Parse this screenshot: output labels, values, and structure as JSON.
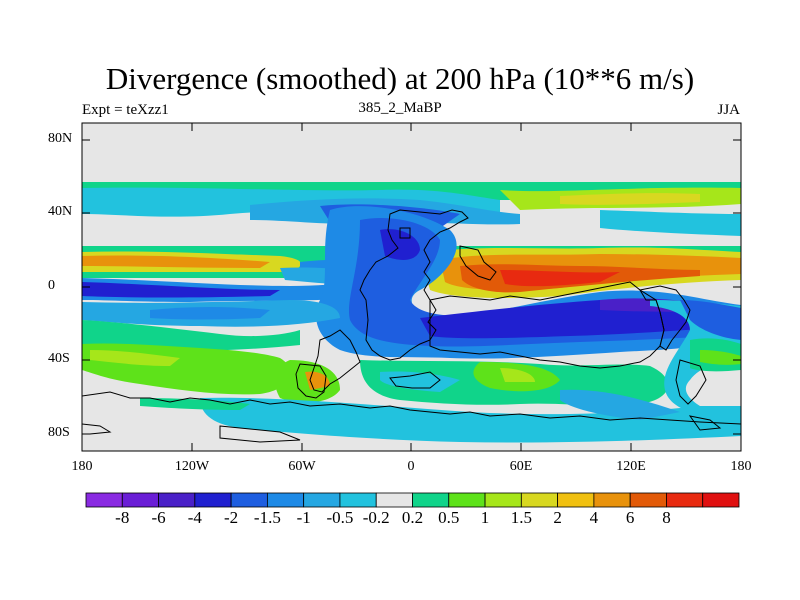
{
  "title": "Divergence (smoothed) at 200 hPa (10**6 m/s)",
  "subtitle_left": "Expt = teXzz1",
  "subtitle_center": "385_2_MaBP",
  "subtitle_right": "JJA",
  "y_ticks": [
    "80N",
    "40N",
    "0",
    "40S",
    "80S"
  ],
  "x_ticks": [
    "180",
    "120W",
    "60W",
    "0",
    "60E",
    "120E",
    "180"
  ],
  "colorbar": {
    "colors": [
      "#8a2be2",
      "#6a1ed6",
      "#4a20c8",
      "#2020d0",
      "#1e5ee0",
      "#1e8ae6",
      "#25a7e2",
      "#22c2de",
      "#e6e6e6",
      "#10d48a",
      "#5ee21a",
      "#a6e61a",
      "#d8d820",
      "#f0c010",
      "#e8920c",
      "#e25a08",
      "#e82a10",
      "#e01010"
    ],
    "labels": [
      "-8",
      "-6",
      "-4",
      "-2",
      "-1.5",
      "-1",
      "-0.5",
      "-0.2",
      "0.2",
      "0.5",
      "1",
      "1.5",
      "2",
      "4",
      "6",
      "8"
    ]
  }
}
